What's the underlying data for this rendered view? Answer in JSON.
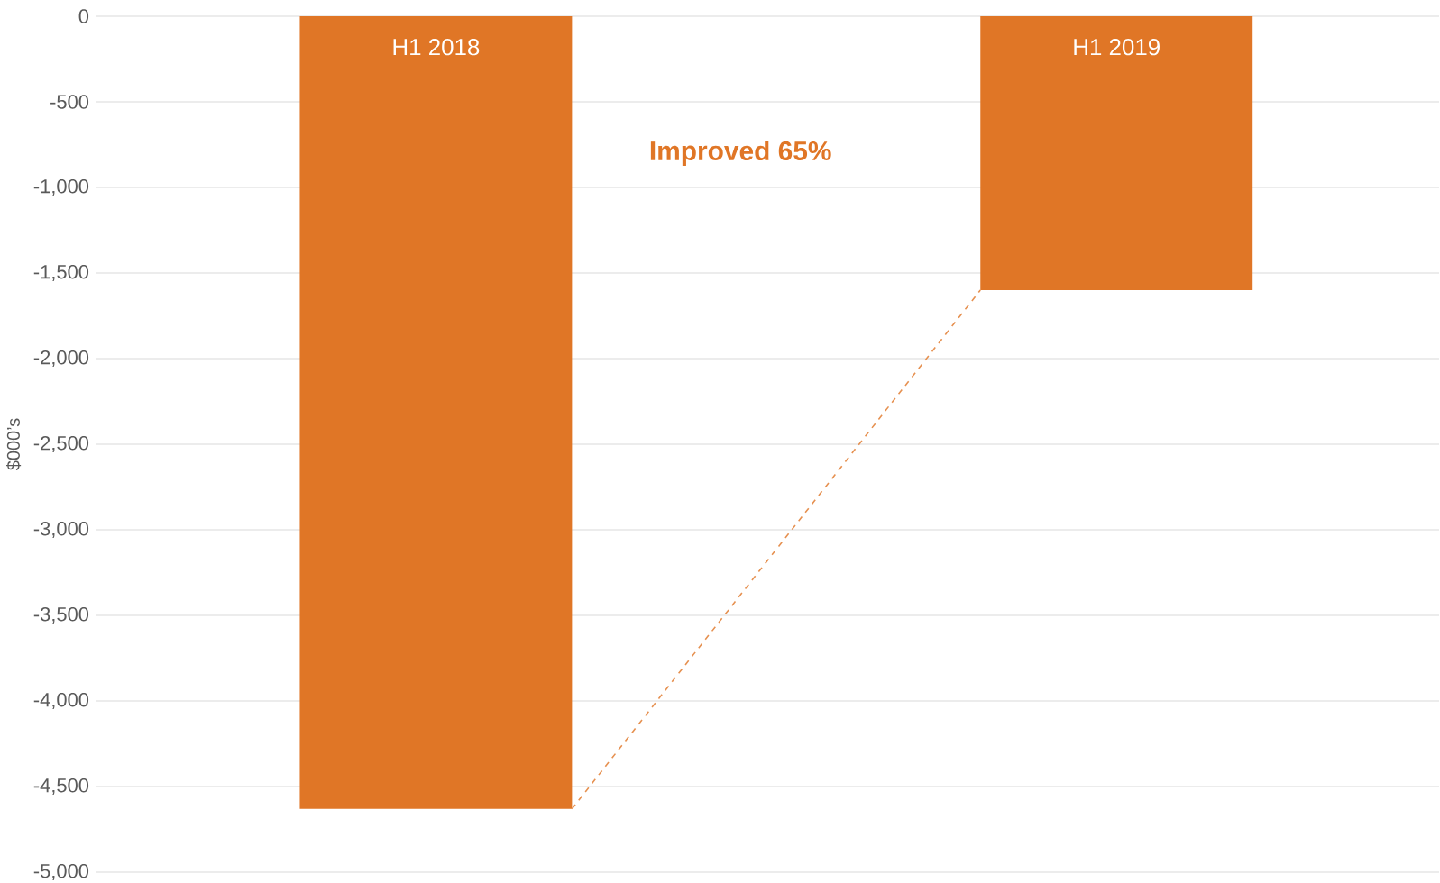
{
  "chart_data": {
    "type": "bar",
    "ylabel": "$000’s",
    "categories": [
      "H1 2018",
      "H1 2019"
    ],
    "series": [
      {
        "color": "#e07626",
        "values": [
          -4630,
          -1600
        ]
      }
    ],
    "annotations": [
      "**Improved 65%**"
    ],
    "ylim": [
      -5000,
      0
    ],
    "yticks": [
      {
        "value": -5000,
        "label": "-5,000"
      },
      {
        "value": -4500,
        "label": "-4,500"
      },
      {
        "value": -4000,
        "label": "-4,000"
      },
      {
        "value": -3500,
        "label": "-3,500"
      },
      {
        "value": -3000,
        "label": "-3,000"
      },
      {
        "value": -2500,
        "label": "-2,500"
      },
      {
        "value": -2000,
        "label": "-2,000"
      },
      {
        "value": -1500,
        "label": "-1,500"
      },
      {
        "value": -1000,
        "label": "-1,000"
      },
      -500,
      0
    ],
    "grid": "y"
  }
}
